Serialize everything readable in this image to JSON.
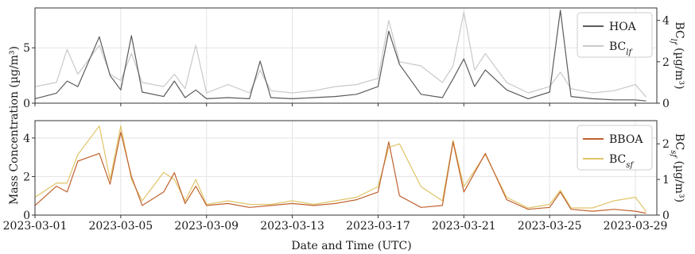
{
  "figure": {
    "xlabel": "Date and Time (UTC)",
    "shared_ylabel": "Mass Concentration (µg/m³)",
    "x_ticks": [
      "2023-03-01",
      "2023-03-05",
      "2023-03-09",
      "2023-03-13",
      "2023-03-17",
      "2023-03-21",
      "2023-03-25",
      "2023-03-29"
    ]
  },
  "chart_data": [
    {
      "type": "line",
      "panel": "top",
      "xlabel": "",
      "ylabel_left": "",
      "ylabel_right": "BC_lf (µg/m³)",
      "xlim": [
        "2023-03-01",
        "2023-03-30"
      ],
      "ylim_left": [
        0,
        8.6
      ],
      "ylim_right": [
        0,
        4.6
      ],
      "yticks_left": [
        0,
        5
      ],
      "yticks_right": [
        0,
        2,
        4
      ],
      "grid": true,
      "legend": "top-right",
      "series": [
        {
          "name": "HOA",
          "axis": "left",
          "color": "#5b5b5b",
          "x": [
            "2023-03-01",
            "2023-03-02",
            "2023-03-02 12:00",
            "2023-03-03",
            "2023-03-04",
            "2023-03-04 12:00",
            "2023-03-05",
            "2023-03-05 12:00",
            "2023-03-06",
            "2023-03-07",
            "2023-03-07 12:00",
            "2023-03-08",
            "2023-03-08 12:00",
            "2023-03-09",
            "2023-03-10",
            "2023-03-11",
            "2023-03-11 12:00",
            "2023-03-12",
            "2023-03-13",
            "2023-03-14",
            "2023-03-15",
            "2023-03-16",
            "2023-03-17",
            "2023-03-17 12:00",
            "2023-03-18",
            "2023-03-19",
            "2023-03-20",
            "2023-03-20 12:00",
            "2023-03-21",
            "2023-03-21 12:00",
            "2023-03-22",
            "2023-03-23",
            "2023-03-24",
            "2023-03-25",
            "2023-03-25 12:00",
            "2023-03-26",
            "2023-03-27",
            "2023-03-28",
            "2023-03-29",
            "2023-03-29 12:00"
          ],
          "y": [
            0.4,
            0.9,
            2.0,
            1.5,
            6.0,
            2.5,
            1.2,
            6.1,
            1.0,
            0.6,
            2.0,
            0.5,
            1.2,
            0.4,
            0.5,
            0.4,
            3.8,
            0.5,
            0.4,
            0.5,
            0.6,
            0.8,
            1.5,
            6.5,
            3.5,
            0.8,
            0.5,
            2.2,
            4.0,
            1.5,
            3.0,
            1.2,
            0.4,
            1.0,
            8.4,
            0.6,
            0.4,
            0.3,
            0.3,
            0.2
          ]
        },
        {
          "name": "BC_lf",
          "axis": "right",
          "color": "#c9c9c9",
          "x": [
            "2023-03-01",
            "2023-03-02",
            "2023-03-02 12:00",
            "2023-03-03",
            "2023-03-04",
            "2023-03-04 12:00",
            "2023-03-05",
            "2023-03-05 12:00",
            "2023-03-06",
            "2023-03-07",
            "2023-03-07 12:00",
            "2023-03-08",
            "2023-03-08 12:00",
            "2023-03-09",
            "2023-03-10",
            "2023-03-11",
            "2023-03-11 12:00",
            "2023-03-12",
            "2023-03-13",
            "2023-03-14",
            "2023-03-15",
            "2023-03-16",
            "2023-03-17",
            "2023-03-17 12:00",
            "2023-03-18",
            "2023-03-19",
            "2023-03-20",
            "2023-03-20 12:00",
            "2023-03-21",
            "2023-03-21 12:00",
            "2023-03-22",
            "2023-03-23",
            "2023-03-24",
            "2023-03-25",
            "2023-03-25 12:00",
            "2023-03-26",
            "2023-03-27",
            "2023-03-28",
            "2023-03-29",
            "2023-03-29 12:00"
          ],
          "y": [
            0.8,
            1.0,
            2.6,
            1.4,
            2.8,
            1.4,
            1.1,
            2.4,
            1.0,
            0.8,
            1.4,
            0.7,
            2.8,
            0.5,
            0.9,
            0.5,
            1.6,
            0.6,
            0.5,
            0.6,
            0.8,
            0.9,
            1.2,
            4.0,
            2.0,
            1.8,
            1.0,
            1.8,
            4.4,
            1.6,
            2.4,
            1.0,
            0.5,
            0.8,
            1.5,
            0.7,
            0.5,
            0.6,
            0.9,
            0.3
          ]
        }
      ]
    },
    {
      "type": "line",
      "panel": "bottom",
      "xlabel": "Date and Time (UTC)",
      "ylabel_left": "",
      "ylabel_right": "BC_sf (µg/m³)",
      "xlim": [
        "2023-03-01",
        "2023-03-30"
      ],
      "ylim_left": [
        0,
        4.9
      ],
      "ylim_right": [
        0,
        2.65
      ],
      "yticks_left": [
        0,
        2,
        4
      ],
      "yticks_right": [
        0,
        1,
        2
      ],
      "grid": true,
      "legend": "top-right",
      "series": [
        {
          "name": "BBOA",
          "axis": "left",
          "color": "#c0622e",
          "x": [
            "2023-03-01",
            "2023-03-02",
            "2023-03-02 12:00",
            "2023-03-03",
            "2023-03-04",
            "2023-03-04 12:00",
            "2023-03-05",
            "2023-03-05 12:00",
            "2023-03-06",
            "2023-03-07",
            "2023-03-07 12:00",
            "2023-03-08",
            "2023-03-08 12:00",
            "2023-03-09",
            "2023-03-10",
            "2023-03-11",
            "2023-03-12",
            "2023-03-13",
            "2023-03-14",
            "2023-03-15",
            "2023-03-16",
            "2023-03-17",
            "2023-03-17 12:00",
            "2023-03-18",
            "2023-03-19",
            "2023-03-20",
            "2023-03-20 12:00",
            "2023-03-21",
            "2023-03-22",
            "2023-03-23",
            "2023-03-24",
            "2023-03-25",
            "2023-03-25 12:00",
            "2023-03-26",
            "2023-03-27",
            "2023-03-28",
            "2023-03-29",
            "2023-03-29 12:00"
          ],
          "y": [
            0.5,
            1.5,
            1.2,
            2.8,
            3.2,
            1.6,
            4.3,
            2.0,
            0.5,
            1.2,
            2.2,
            0.6,
            1.5,
            0.5,
            0.6,
            0.4,
            0.5,
            0.6,
            0.5,
            0.6,
            0.8,
            1.2,
            3.8,
            1.0,
            0.4,
            0.5,
            3.8,
            1.2,
            3.2,
            0.8,
            0.3,
            0.4,
            1.2,
            0.3,
            0.2,
            0.3,
            0.2,
            0.1
          ]
        },
        {
          "name": "BC_sf",
          "axis": "right",
          "color": "#e0c468",
          "x": [
            "2023-03-01",
            "2023-03-02",
            "2023-03-02 12:00",
            "2023-03-03",
            "2023-03-04",
            "2023-03-04 12:00",
            "2023-03-05",
            "2023-03-05 12:00",
            "2023-03-06",
            "2023-03-07",
            "2023-03-07 12:00",
            "2023-03-08",
            "2023-03-08 12:00",
            "2023-03-09",
            "2023-03-10",
            "2023-03-11",
            "2023-03-12",
            "2023-03-13",
            "2023-03-14",
            "2023-03-15",
            "2023-03-16",
            "2023-03-17",
            "2023-03-17 12:00",
            "2023-03-18",
            "2023-03-19",
            "2023-03-20",
            "2023-03-20 12:00",
            "2023-03-21",
            "2023-03-22",
            "2023-03-23",
            "2023-03-24",
            "2023-03-25",
            "2023-03-25 12:00",
            "2023-03-26",
            "2023-03-27",
            "2023-03-28",
            "2023-03-29",
            "2023-03-29 12:00"
          ],
          "y": [
            0.5,
            0.9,
            0.9,
            1.7,
            2.5,
            1.0,
            2.5,
            1.0,
            0.4,
            1.2,
            1.0,
            0.4,
            1.0,
            0.3,
            0.4,
            0.3,
            0.3,
            0.4,
            0.3,
            0.4,
            0.5,
            0.8,
            1.9,
            2.0,
            0.8,
            0.4,
            2.1,
            0.8,
            1.7,
            0.5,
            0.2,
            0.3,
            0.7,
            0.2,
            0.2,
            0.4,
            0.5,
            0.1
          ]
        }
      ]
    }
  ]
}
